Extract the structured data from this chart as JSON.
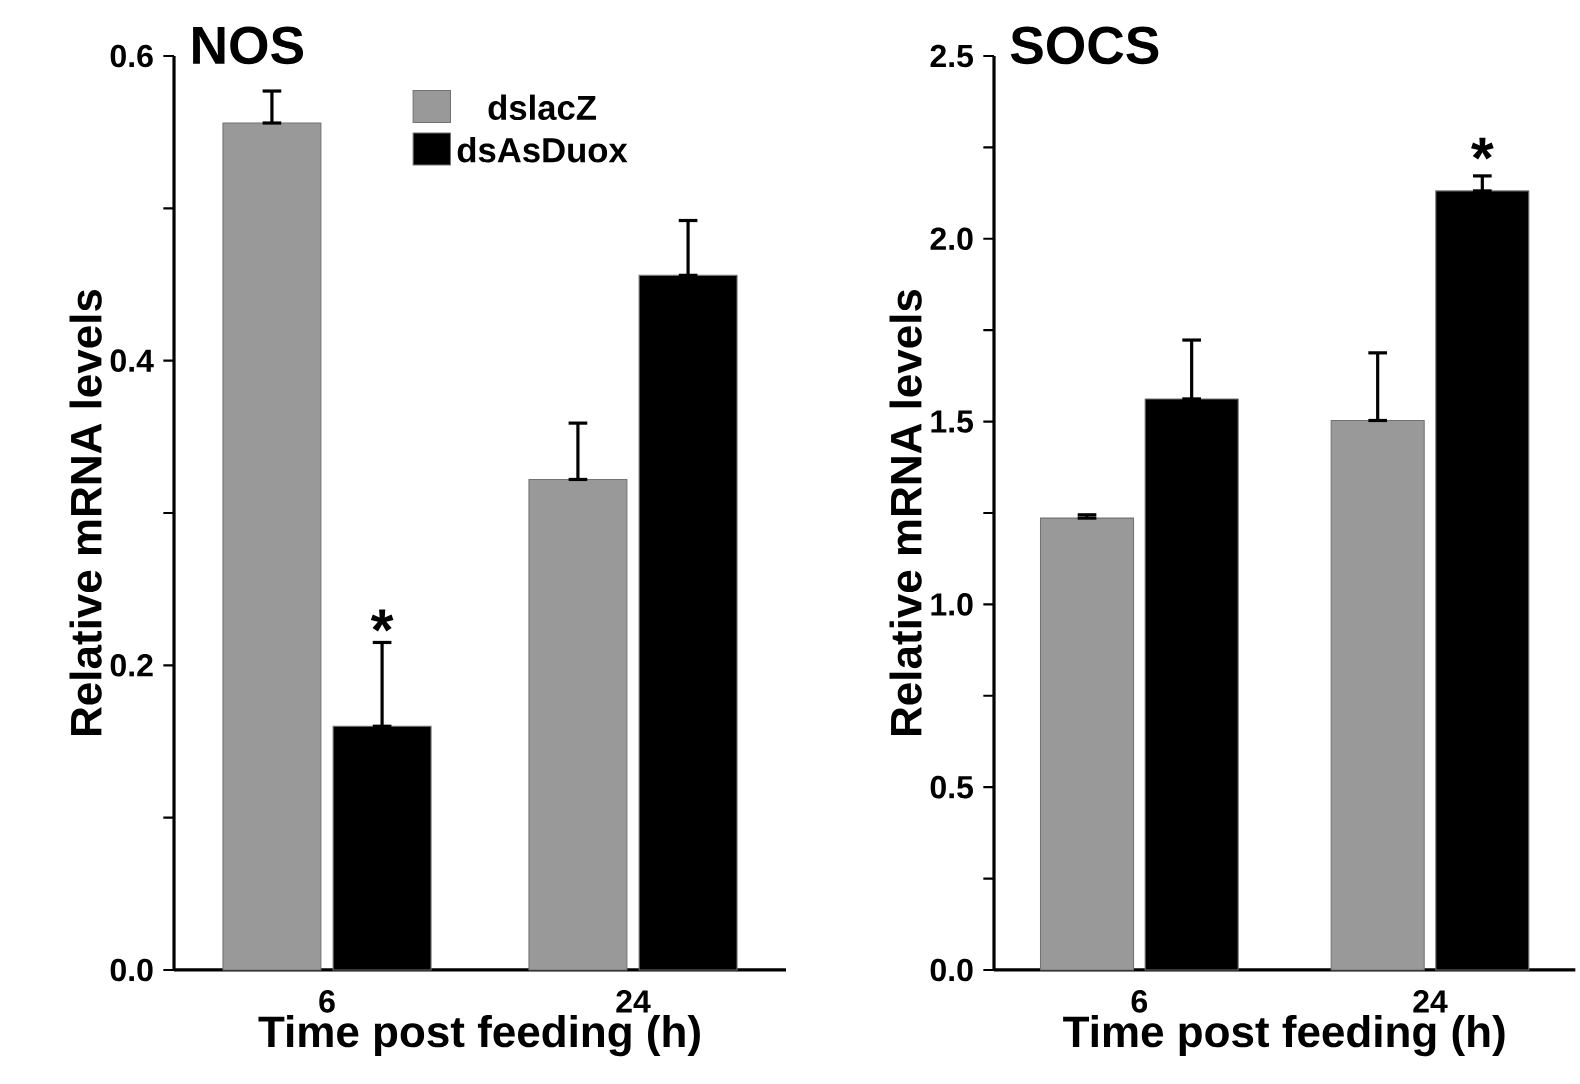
{
  "chart_data": [
    {
      "type": "bar",
      "title": "NOS",
      "xlabel": "Time post feeding (h)",
      "ylabel": "Relative mRNA levels",
      "categories": [
        "6",
        "24"
      ],
      "series": [
        {
          "name": "dslacZ",
          "color": "#999999",
          "values": [
            0.556,
            0.322
          ],
          "errors": [
            [
              0.556,
              0.577
            ],
            [
              0.322,
              0.359
            ]
          ]
        },
        {
          "name": "dsAsDuox",
          "color": "#000000",
          "values": [
            0.16,
            0.456
          ],
          "errors": [
            [
              0.16,
              0.215
            ],
            [
              0.456,
              0.492
            ]
          ]
        }
      ],
      "ylim": [
        0,
        0.6
      ],
      "yticks": [
        {
          "value": 0.0,
          "label": "0.0"
        },
        {
          "value": 0.1,
          "label": null
        },
        {
          "value": 0.2,
          "label": "0.2"
        },
        {
          "value": 0.3,
          "label": null
        },
        {
          "value": 0.4,
          "label": "0.4"
        },
        {
          "value": 0.5,
          "label": null
        },
        {
          "value": 0.6,
          "label": "0.6"
        }
      ],
      "legend": "top",
      "annotations": [
        {
          "text": "*",
          "x": "6",
          "y": 0.215
        }
      ]
    },
    {
      "type": "bar",
      "title": "SOCS",
      "xlabel": "Time post feeding (h)",
      "ylabel": "Relative mRNA levels",
      "categories": [
        "6",
        "24"
      ],
      "series": [
        {
          "color": "#999999",
          "values": [
            1.236,
            1.503
          ],
          "errors": [
            [
              1.236,
              1.245
            ],
            [
              1.503,
              1.688
            ]
          ]
        },
        {
          "color": "#000000",
          "values": [
            1.562,
            2.131
          ],
          "errors": [
            [
              1.562,
              1.723
            ],
            [
              2.131,
              2.172
            ]
          ]
        }
      ],
      "ylim": [
        0,
        2.5
      ],
      "yticks": [
        {
          "value": 0.0,
          "label": "0.0"
        },
        {
          "value": 0.25,
          "label": null
        },
        {
          "value": 0.5,
          "label": "0.5"
        },
        {
          "value": 0.75,
          "label": null
        },
        {
          "value": 1.0,
          "label": "1.0"
        },
        {
          "value": 1.25,
          "label": null
        },
        {
          "value": 1.5,
          "label": "1.5"
        },
        {
          "value": 1.75,
          "label": null
        },
        {
          "value": 2.0,
          "label": "2.0"
        },
        {
          "value": 2.25,
          "label": null
        },
        {
          "value": 2.5,
          "label": "2.5"
        }
      ],
      "annotations": [
        "*"
      ]
    }
  ]
}
